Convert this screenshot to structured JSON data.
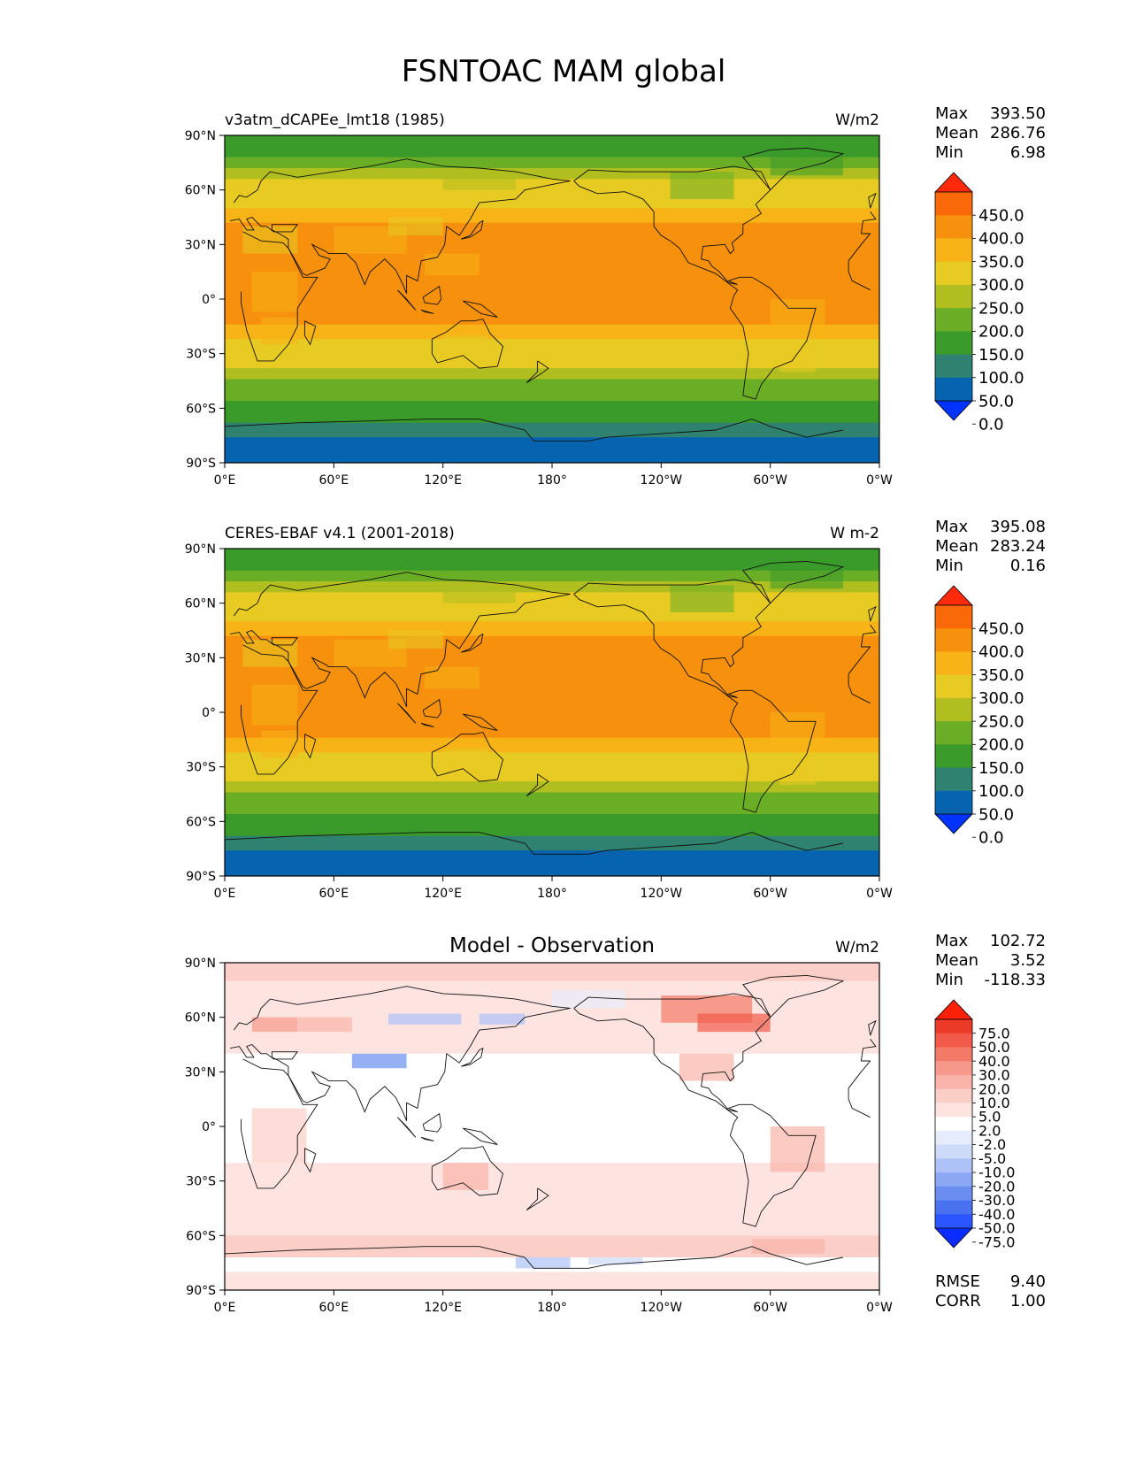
{
  "figure_title": "FSNTOAC MAM global",
  "lat_ticks": [
    "90°N",
    "60°N",
    "30°N",
    "0°",
    "30°S",
    "60°S",
    "90°S"
  ],
  "lon_ticks": [
    "0°E",
    "60°E",
    "120°E",
    "180°",
    "120°W",
    "60°W",
    "0°W"
  ],
  "chart_data": [
    {
      "type": "heatmap",
      "panel": "test",
      "title": "v3atm_dCAPEe_lmt18 (1985)",
      "units": "W/m2",
      "stats": {
        "max_label": "Max",
        "max": "393.50",
        "mean_label": "Mean",
        "mean": "286.76",
        "min_label": "Min",
        "min": "6.98"
      },
      "colorbar_levels": [
        "0.0",
        "50.0",
        "100.0",
        "150.0",
        "200.0",
        "250.0",
        "300.0",
        "350.0",
        "400.0",
        "450.0"
      ],
      "colorbar_colors": [
        "#0033ff",
        "#0563b0",
        "#2f8270",
        "#3a9a2a",
        "#6aae26",
        "#b0bf1f",
        "#e8cb22",
        "#f8b316",
        "#f7910d",
        "#f9690a",
        "#ff2a0c"
      ],
      "xlim": [
        0,
        360
      ],
      "ylim": [
        -90,
        90
      ]
    },
    {
      "type": "heatmap",
      "panel": "reference",
      "title": "CERES-EBAF v4.1 (2001-2018)",
      "units": "W m-2",
      "stats": {
        "max_label": "Max",
        "max": "395.08",
        "mean_label": "Mean",
        "mean": "283.24",
        "min_label": "Min",
        "min": "0.16"
      },
      "colorbar_levels": [
        "0.0",
        "50.0",
        "100.0",
        "150.0",
        "200.0",
        "250.0",
        "300.0",
        "350.0",
        "400.0",
        "450.0"
      ],
      "colorbar_colors": [
        "#0033ff",
        "#0563b0",
        "#2f8270",
        "#3a9a2a",
        "#6aae26",
        "#b0bf1f",
        "#e8cb22",
        "#f8b316",
        "#f7910d",
        "#f9690a",
        "#ff2a0c"
      ],
      "xlim": [
        0,
        360
      ],
      "ylim": [
        -90,
        90
      ]
    },
    {
      "type": "heatmap",
      "panel": "difference",
      "title": "Model - Observation",
      "units": "W/m2",
      "stats": {
        "max_label": "Max",
        "max": "102.72",
        "mean_label": "Mean",
        "mean": "3.52",
        "min_label": "Min",
        "min": "-118.33"
      },
      "colorbar_levels": [
        "-75.0",
        "-50.0",
        "-40.0",
        "-30.0",
        "-20.0",
        "-10.0",
        "-5.0",
        "-2.0",
        "2.0",
        "5.0",
        "10.0",
        "20.0",
        "30.0",
        "40.0",
        "50.0",
        "75.0"
      ],
      "colorbar_colors": [
        "#0a2cff",
        "#2a55ff",
        "#4a72f0",
        "#6a8ef0",
        "#8ca8f4",
        "#aec2f8",
        "#cddaf8",
        "#e6ecfb",
        "#ffffff",
        "#fde4e0",
        "#fbcfc8",
        "#f9b3a8",
        "#f7998a",
        "#f47a68",
        "#f15a48",
        "#ec3a28",
        "#ff2008"
      ],
      "rmse_label": "RMSE",
      "rmse": "9.40",
      "corr_label": "CORR",
      "corr": "1.00",
      "xlim": [
        0,
        360
      ],
      "ylim": [
        -90,
        90
      ]
    }
  ]
}
